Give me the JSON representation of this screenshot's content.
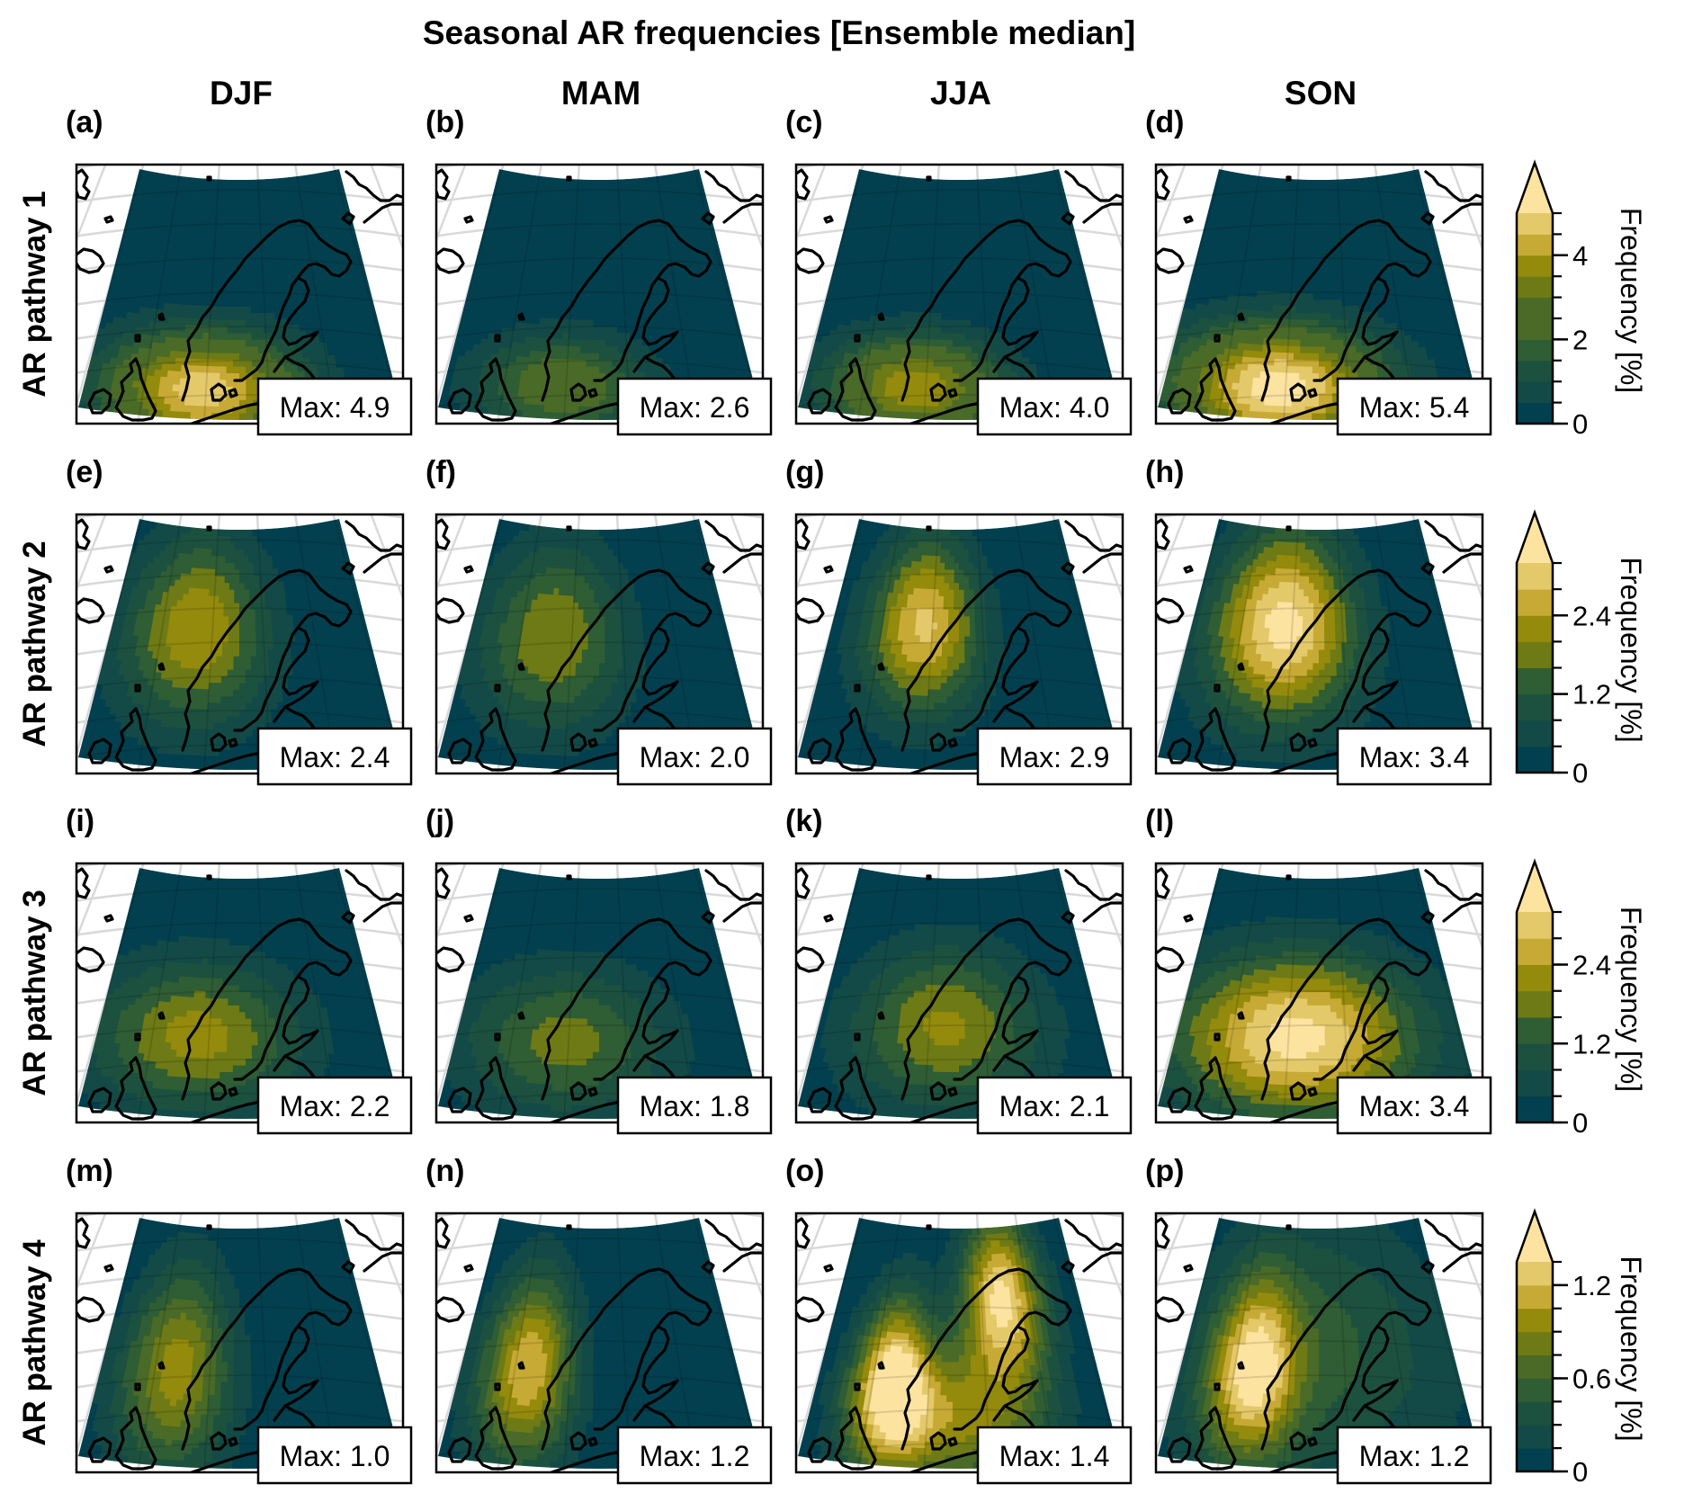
{
  "chart_data": {
    "type": "heatmap",
    "title": "Seasonal AR frequencies [Ensemble median]",
    "columns": [
      "DJF",
      "MAM",
      "JJA",
      "SON"
    ],
    "rows": [
      "AR pathway 1",
      "AR pathway 2",
      "AR pathway 3",
      "AR pathway 4"
    ],
    "colormap": [
      "#03404f",
      "#134a47",
      "#1d513f",
      "#2f5d34",
      "#4a6a28",
      "#6e7a15",
      "#948a0c",
      "#c7aa35",
      "#e4c96a",
      "#fde3a0"
    ],
    "colorbars": [
      {
        "label": "Frequency [%]",
        "min": 0,
        "max": 5.0,
        "step": 0.5,
        "extend": "max",
        "ticks": [
          0,
          2,
          4
        ],
        "tick_labels": [
          "0",
          "2",
          "4"
        ]
      },
      {
        "label": "Frequency [%]",
        "min": 0,
        "max": 3.2,
        "step": 0.4,
        "extend": "max",
        "ticks": [
          0,
          1.2,
          2.4
        ],
        "tick_labels": [
          "0",
          "1.2",
          "2.4"
        ]
      },
      {
        "label": "Frequency [%]",
        "min": 0,
        "max": 3.2,
        "step": 0.4,
        "extend": "max",
        "ticks": [
          0,
          1.2,
          2.4
        ],
        "tick_labels": [
          "0",
          "1.2",
          "2.4"
        ]
      },
      {
        "label": "Frequency [%]",
        "min": 0,
        "max": 1.35,
        "step": 0.15,
        "extend": "max",
        "ticks": [
          0,
          0.6,
          1.2
        ],
        "tick_labels": [
          "0",
          "0.6",
          "1.2"
        ]
      }
    ],
    "panels": [
      {
        "label": "(a)",
        "row": 0,
        "col": 0,
        "max_text": "Max: 4.9",
        "max": 4.9,
        "hotspots": [
          {
            "u": 0.38,
            "v": 0.88,
            "su": 0.22,
            "sv": 0.17,
            "a": 4.9
          }
        ]
      },
      {
        "label": "(b)",
        "row": 0,
        "col": 1,
        "max_text": "Max: 2.6",
        "max": 2.6,
        "hotspots": [
          {
            "u": 0.38,
            "v": 0.86,
            "su": 0.2,
            "sv": 0.15,
            "a": 2.6
          }
        ]
      },
      {
        "label": "(c)",
        "row": 0,
        "col": 2,
        "max_text": "Max: 4.0",
        "max": 4.0,
        "hotspots": [
          {
            "u": 0.36,
            "v": 0.87,
            "su": 0.2,
            "sv": 0.15,
            "a": 4.0
          }
        ]
      },
      {
        "label": "(d)",
        "row": 0,
        "col": 3,
        "max_text": "Max: 5.4",
        "max": 5.4,
        "hotspots": [
          {
            "u": 0.37,
            "v": 0.87,
            "su": 0.24,
            "sv": 0.18,
            "a": 5.4
          }
        ]
      },
      {
        "label": "(e)",
        "row": 1,
        "col": 0,
        "max_text": "Max: 2.4",
        "max": 2.4,
        "hotspots": [
          {
            "u": 0.33,
            "v": 0.42,
            "su": 0.2,
            "sv": 0.28,
            "a": 2.4
          }
        ]
      },
      {
        "label": "(f)",
        "row": 1,
        "col": 1,
        "max_text": "Max: 2.0",
        "max": 2.0,
        "hotspots": [
          {
            "u": 0.32,
            "v": 0.45,
            "su": 0.2,
            "sv": 0.28,
            "a": 2.0
          }
        ]
      },
      {
        "label": "(g)",
        "row": 1,
        "col": 2,
        "max_text": "Max: 2.9",
        "max": 2.9,
        "hotspots": [
          {
            "u": 0.36,
            "v": 0.4,
            "su": 0.16,
            "sv": 0.26,
            "a": 2.9
          }
        ]
      },
      {
        "label": "(h)",
        "row": 1,
        "col": 3,
        "max_text": "Max: 3.4",
        "max": 3.4,
        "hotspots": [
          {
            "u": 0.36,
            "v": 0.4,
            "su": 0.2,
            "sv": 0.28,
            "a": 3.4
          }
        ]
      },
      {
        "label": "(i)",
        "row": 2,
        "col": 0,
        "max_text": "Max: 2.2",
        "max": 2.2,
        "hotspots": [
          {
            "u": 0.35,
            "v": 0.66,
            "su": 0.26,
            "sv": 0.22,
            "a": 2.2
          }
        ]
      },
      {
        "label": "(j)",
        "row": 2,
        "col": 1,
        "max_text": "Max: 1.8",
        "max": 1.8,
        "hotspots": [
          {
            "u": 0.38,
            "v": 0.68,
            "su": 0.26,
            "sv": 0.22,
            "a": 1.8
          }
        ]
      },
      {
        "label": "(k)",
        "row": 2,
        "col": 2,
        "max_text": "Max: 2.1",
        "max": 2.1,
        "hotspots": [
          {
            "u": 0.45,
            "v": 0.62,
            "su": 0.24,
            "sv": 0.24,
            "a": 2.1
          }
        ]
      },
      {
        "label": "(l)",
        "row": 2,
        "col": 3,
        "max_text": "Max: 3.4",
        "max": 3.4,
        "hotspots": [
          {
            "u": 0.42,
            "v": 0.66,
            "su": 0.3,
            "sv": 0.24,
            "a": 3.4
          }
        ]
      },
      {
        "label": "(m)",
        "row": 3,
        "col": 0,
        "max_text": "Max: 1.0",
        "max": 1.0,
        "hotspots": [
          {
            "u": 0.27,
            "v": 0.6,
            "su": 0.14,
            "sv": 0.3,
            "a": 1.0
          }
        ]
      },
      {
        "label": "(n)",
        "row": 3,
        "col": 1,
        "max_text": "Max: 1.2",
        "max": 1.2,
        "hotspots": [
          {
            "u": 0.24,
            "v": 0.6,
            "su": 0.12,
            "sv": 0.28,
            "a": 1.2
          }
        ]
      },
      {
        "label": "(o)",
        "row": 3,
        "col": 2,
        "max_text": "Max: 1.4",
        "max": 1.4,
        "hotspots": [
          {
            "u": 0.26,
            "v": 0.65,
            "su": 0.1,
            "sv": 0.25,
            "a": 1.4
          },
          {
            "u": 0.68,
            "v": 0.3,
            "su": 0.12,
            "sv": 0.25,
            "a": 1.4
          },
          {
            "u": 0.5,
            "v": 0.8,
            "su": 0.2,
            "sv": 0.2,
            "a": 0.9
          }
        ]
      },
      {
        "label": "(p)",
        "row": 3,
        "col": 3,
        "max_text": "Max: 1.2",
        "max": 1.2,
        "hotspots": [
          {
            "u": 0.26,
            "v": 0.6,
            "su": 0.11,
            "sv": 0.26,
            "a": 1.2
          },
          {
            "u": 0.5,
            "v": 0.5,
            "su": 0.35,
            "sv": 0.4,
            "a": 0.5
          }
        ]
      }
    ]
  }
}
